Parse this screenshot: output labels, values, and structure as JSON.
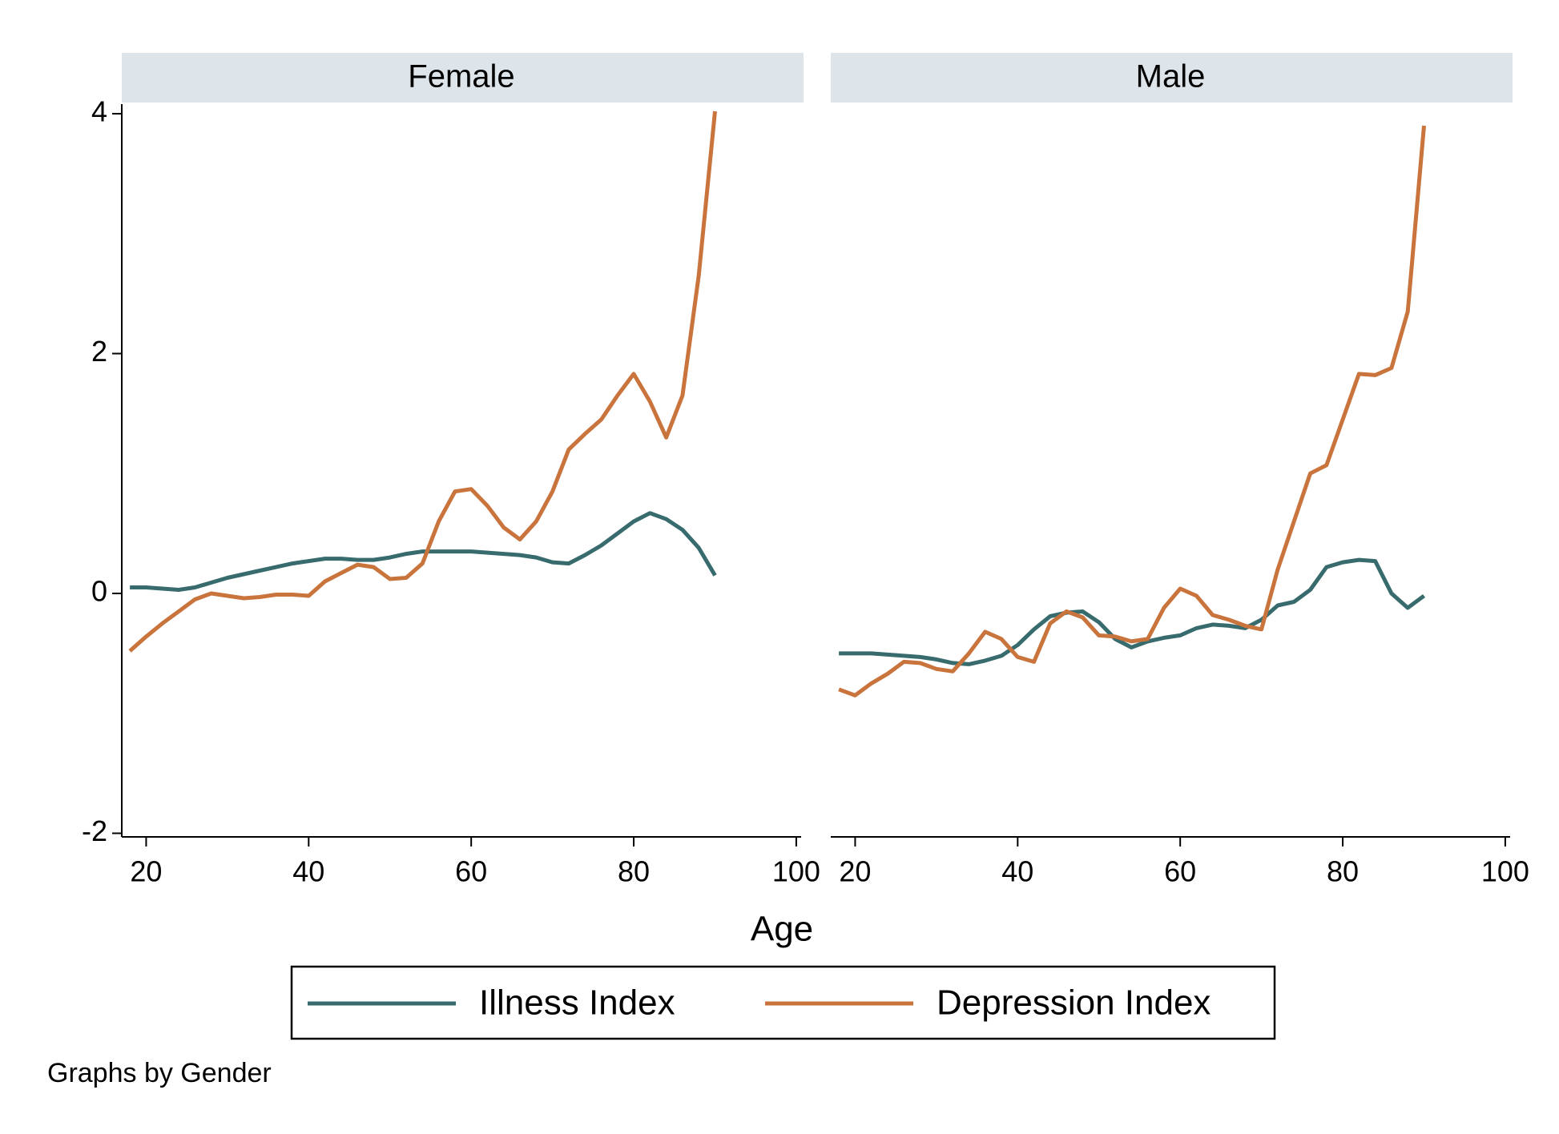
{
  "chart_data": [
    {
      "type": "line",
      "title": "Female",
      "x": [
        18,
        20,
        22,
        24,
        26,
        28,
        30,
        32,
        34,
        36,
        38,
        40,
        42,
        44,
        46,
        48,
        50,
        52,
        54,
        56,
        58,
        60,
        62,
        64,
        66,
        68,
        70,
        72,
        74,
        76,
        78,
        80,
        82,
        84,
        86,
        88,
        90
      ],
      "xlim": [
        17,
        100.6
      ],
      "xticks": [
        20,
        40,
        60,
        80,
        100
      ],
      "ylim": [
        -2.03,
        4.08
      ],
      "yticks": [
        -2,
        0,
        2,
        4
      ],
      "series": [
        {
          "name": "Illness Index",
          "color": "#376b6d",
          "values": [
            0.05,
            0.05,
            0.04,
            0.03,
            0.05,
            0.09,
            0.13,
            0.16,
            0.19,
            0.22,
            0.25,
            0.27,
            0.29,
            0.29,
            0.28,
            0.28,
            0.3,
            0.33,
            0.35,
            0.35,
            0.35,
            0.35,
            0.34,
            0.33,
            0.32,
            0.3,
            0.26,
            0.25,
            0.32,
            0.4,
            0.5,
            0.6,
            0.67,
            0.62,
            0.53,
            0.38,
            0.15
          ]
        },
        {
          "name": "Depression Index",
          "color": "#c9743c",
          "values": [
            -0.48,
            -0.36,
            -0.25,
            -0.15,
            -0.05,
            0.0,
            -0.02,
            -0.04,
            -0.03,
            -0.01,
            -0.01,
            -0.02,
            0.1,
            0.17,
            0.24,
            0.22,
            0.12,
            0.13,
            0.25,
            0.6,
            0.85,
            0.87,
            0.73,
            0.55,
            0.45,
            0.6,
            0.85,
            1.2,
            1.33,
            1.45,
            1.65,
            1.83,
            1.6,
            1.3,
            1.65,
            2.65,
            4.02
          ]
        }
      ]
    },
    {
      "type": "line",
      "title": "Male",
      "x": [
        18,
        20,
        22,
        24,
        26,
        28,
        30,
        32,
        34,
        36,
        38,
        40,
        42,
        44,
        46,
        48,
        50,
        52,
        54,
        56,
        58,
        60,
        62,
        64,
        66,
        68,
        70,
        72,
        74,
        76,
        78,
        80,
        82,
        84,
        86,
        88,
        90
      ],
      "xlim": [
        17,
        100.6
      ],
      "xticks": [
        20,
        40,
        60,
        80,
        100
      ],
      "ylim": [
        -2.03,
        4.08
      ],
      "series": [
        {
          "name": "Illness Index",
          "color": "#376b6d",
          "values": [
            -0.5,
            -0.5,
            -0.5,
            -0.51,
            -0.52,
            -0.53,
            -0.55,
            -0.58,
            -0.59,
            -0.56,
            -0.52,
            -0.43,
            -0.3,
            -0.19,
            -0.16,
            -0.15,
            -0.24,
            -0.38,
            -0.45,
            -0.4,
            -0.37,
            -0.35,
            -0.29,
            -0.26,
            -0.27,
            -0.29,
            -0.22,
            -0.1,
            -0.07,
            0.03,
            0.22,
            0.26,
            0.28,
            0.27,
            0.0,
            -0.12,
            -0.02
          ]
        },
        {
          "name": "Depression Index",
          "color": "#c9743c",
          "values": [
            -0.8,
            -0.85,
            -0.75,
            -0.67,
            -0.57,
            -0.58,
            -0.63,
            -0.65,
            -0.5,
            -0.32,
            -0.38,
            -0.53,
            -0.57,
            -0.25,
            -0.15,
            -0.2,
            -0.35,
            -0.36,
            -0.4,
            -0.38,
            -0.12,
            0.04,
            -0.02,
            -0.18,
            -0.22,
            -0.27,
            -0.3,
            0.2,
            0.6,
            1.0,
            1.07,
            1.45,
            1.83,
            1.82,
            1.88,
            2.35,
            3.9
          ]
        }
      ]
    }
  ],
  "x_label": "Age",
  "legend_position": "bottom",
  "note": "Graphs by Gender"
}
